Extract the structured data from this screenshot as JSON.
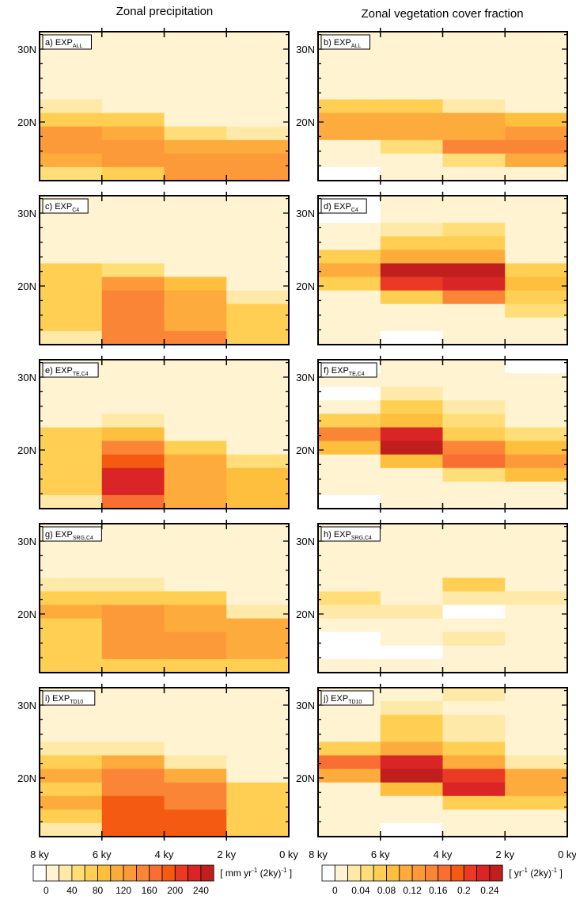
{
  "titles": {
    "left": "Zonal precipitation",
    "right": "Zonal vegetation cover fraction"
  },
  "colors": {
    "scale": [
      "#ffffff",
      "#fff3d2",
      "#ffe9a8",
      "#ffde7a",
      "#fecf52",
      "#fdbf3d",
      "#fdab3c",
      "#fc9a3a",
      "#fb8537",
      "#f86e33",
      "#f45a12",
      "#ea3a24",
      "#d92525",
      "#c11e1e"
    ],
    "frame": "#000000"
  },
  "chart_data": {
    "type": "heatmap",
    "x_ticks": [
      "8 ky",
      "6 ky",
      "4 ky",
      "2 ky",
      "0 ky"
    ],
    "y_ticks": [
      "30N",
      "20N"
    ],
    "bins_x": [
      "8-6 ky",
      "6-4 ky",
      "4-2 ky",
      "2-0 ky"
    ],
    "bins_y_note": "11 rows per panel, index 0 = top row",
    "panels": [
      {
        "label": "a) EXP",
        "sub": "ALL",
        "col": 0,
        "row": 0,
        "grid": [
          [
            1,
            1,
            1,
            1
          ],
          [
            1,
            1,
            1,
            1
          ],
          [
            1,
            1,
            1,
            1
          ],
          [
            1,
            1,
            1,
            1
          ],
          [
            1,
            1,
            1,
            1
          ],
          [
            2,
            1,
            1,
            1
          ],
          [
            4,
            4,
            1,
            1
          ],
          [
            7,
            6,
            3,
            2
          ],
          [
            7,
            7,
            6,
            6
          ],
          [
            6,
            7,
            7,
            7
          ],
          [
            3,
            4,
            7,
            7
          ]
        ]
      },
      {
        "label": "b) EXP",
        "sub": "ALL",
        "col": 1,
        "row": 0,
        "grid": [
          [
            1,
            1,
            1,
            1
          ],
          [
            1,
            1,
            1,
            1
          ],
          [
            1,
            1,
            1,
            1
          ],
          [
            1,
            1,
            1,
            1
          ],
          [
            1,
            1,
            1,
            1
          ],
          [
            4,
            4,
            2,
            1
          ],
          [
            6,
            6,
            6,
            5
          ],
          [
            6,
            6,
            6,
            7
          ],
          [
            1,
            3,
            8,
            8
          ],
          [
            1,
            1,
            3,
            6
          ],
          [
            0,
            1,
            1,
            1
          ]
        ]
      },
      {
        "label": "c) EXP",
        "sub": "C4",
        "col": 0,
        "row": 1,
        "grid": [
          [
            1,
            1,
            1,
            1
          ],
          [
            1,
            1,
            1,
            1
          ],
          [
            1,
            1,
            1,
            1
          ],
          [
            1,
            1,
            1,
            1
          ],
          [
            1,
            1,
            1,
            1
          ],
          [
            4,
            3,
            1,
            1
          ],
          [
            4,
            7,
            5,
            1
          ],
          [
            4,
            8,
            6,
            2
          ],
          [
            4,
            8,
            6,
            4
          ],
          [
            4,
            8,
            6,
            4
          ],
          [
            2,
            8,
            8,
            4
          ]
        ]
      },
      {
        "label": "d) EXP",
        "sub": "C4",
        "col": 1,
        "row": 1,
        "grid": [
          [
            0,
            1,
            1,
            1
          ],
          [
            0,
            1,
            1,
            1
          ],
          [
            1,
            2,
            3,
            1
          ],
          [
            1,
            4,
            4,
            1
          ],
          [
            4,
            6,
            6,
            1
          ],
          [
            6,
            13,
            13,
            4
          ],
          [
            4,
            11,
            12,
            5
          ],
          [
            1,
            4,
            8,
            4
          ],
          [
            1,
            1,
            1,
            3
          ],
          [
            1,
            1,
            1,
            1
          ],
          [
            1,
            0,
            1,
            1
          ]
        ]
      },
      {
        "label": "e) EXP",
        "sub": "TE,C4",
        "col": 0,
        "row": 2,
        "grid": [
          [
            1,
            1,
            1,
            1
          ],
          [
            1,
            1,
            1,
            1
          ],
          [
            1,
            1,
            1,
            1
          ],
          [
            1,
            1,
            1,
            1
          ],
          [
            1,
            2,
            1,
            1
          ],
          [
            4,
            5,
            1,
            1
          ],
          [
            4,
            8,
            4,
            1
          ],
          [
            4,
            10,
            6,
            3
          ],
          [
            4,
            12,
            6,
            5
          ],
          [
            4,
            12,
            6,
            5
          ],
          [
            2,
            9,
            6,
            5
          ]
        ]
      },
      {
        "label": "f) EXP",
        "sub": "TE,C4",
        "col": 1,
        "row": 2,
        "grid": [
          [
            0,
            1,
            1,
            0
          ],
          [
            1,
            1,
            1,
            1
          ],
          [
            0,
            2,
            1,
            1
          ],
          [
            1,
            4,
            2,
            1
          ],
          [
            4,
            5,
            3,
            1
          ],
          [
            8,
            12,
            4,
            3
          ],
          [
            5,
            13,
            8,
            5
          ],
          [
            1,
            5,
            9,
            7
          ],
          [
            1,
            1,
            3,
            5
          ],
          [
            1,
            1,
            1,
            1
          ],
          [
            0,
            1,
            1,
            1
          ]
        ]
      },
      {
        "label": "g) EXP",
        "sub": "SRG,C4",
        "col": 0,
        "row": 3,
        "grid": [
          [
            1,
            1,
            1,
            1
          ],
          [
            1,
            1,
            1,
            1
          ],
          [
            1,
            1,
            1,
            1
          ],
          [
            1,
            1,
            1,
            1
          ],
          [
            2,
            2,
            1,
            1
          ],
          [
            4,
            4,
            4,
            1
          ],
          [
            6,
            7,
            6,
            2
          ],
          [
            4,
            7,
            6,
            6
          ],
          [
            4,
            7,
            7,
            6
          ],
          [
            4,
            7,
            7,
            6
          ],
          [
            4,
            4,
            4,
            4
          ]
        ]
      },
      {
        "label": "h) EXP",
        "sub": "SRG,C4",
        "col": 1,
        "row": 3,
        "grid": [
          [
            1,
            1,
            1,
            1
          ],
          [
            1,
            1,
            1,
            1
          ],
          [
            1,
            1,
            1,
            1
          ],
          [
            1,
            1,
            1,
            1
          ],
          [
            1,
            1,
            4,
            1
          ],
          [
            3,
            1,
            2,
            2
          ],
          [
            2,
            2,
            0,
            1
          ],
          [
            1,
            1,
            1,
            1
          ],
          [
            0,
            1,
            2,
            1
          ],
          [
            0,
            0,
            1,
            1
          ],
          [
            1,
            1,
            1,
            1
          ]
        ]
      },
      {
        "label": "i) EXP",
        "sub": "TD10",
        "col": 0,
        "row": 4,
        "grid": [
          [
            1,
            1,
            1,
            1
          ],
          [
            1,
            1,
            1,
            1
          ],
          [
            1,
            1,
            1,
            1
          ],
          [
            1,
            1,
            1,
            1
          ],
          [
            2,
            2,
            1,
            1
          ],
          [
            4,
            6,
            2,
            1
          ],
          [
            6,
            8,
            6,
            1
          ],
          [
            4,
            8,
            8,
            4
          ],
          [
            6,
            10,
            8,
            4
          ],
          [
            4,
            10,
            10,
            4
          ],
          [
            2,
            10,
            10,
            4
          ]
        ]
      },
      {
        "label": "j) EXP",
        "sub": "TD10",
        "col": 1,
        "row": 4,
        "grid": [
          [
            1,
            1,
            2,
            1
          ],
          [
            1,
            2,
            1,
            1
          ],
          [
            1,
            4,
            2,
            1
          ],
          [
            1,
            4,
            2,
            1
          ],
          [
            4,
            6,
            4,
            1
          ],
          [
            9,
            12,
            6,
            2
          ],
          [
            6,
            13,
            11,
            6
          ],
          [
            1,
            5,
            12,
            6
          ],
          [
            1,
            1,
            4,
            4
          ],
          [
            1,
            1,
            1,
            1
          ],
          [
            1,
            0,
            1,
            1
          ]
        ]
      }
    ],
    "colorbars": [
      {
        "col": 0,
        "ticks": [
          "0",
          "40",
          "80",
          "120",
          "160",
          "200",
          "240"
        ],
        "unit_pre": "[ mm yr",
        "unit_exp": "-1",
        "unit_mid": " (2ky)",
        "unit_post": " ]"
      },
      {
        "col": 1,
        "ticks": [
          "0",
          "0.04",
          "0.08",
          "0.12",
          "0.16",
          "0.2",
          "0.24"
        ],
        "unit_pre": "[ yr",
        "unit_exp": "-1",
        "unit_mid": " (2ky)",
        "unit_post": " ]"
      }
    ]
  }
}
